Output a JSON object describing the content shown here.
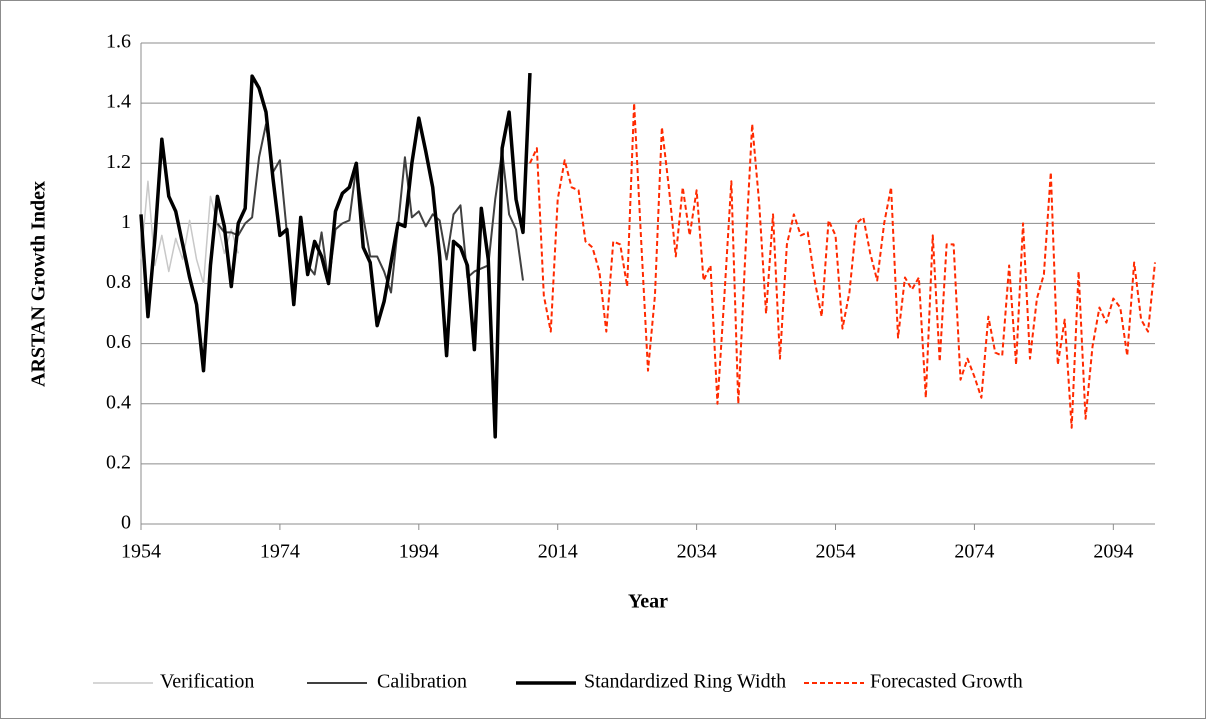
{
  "chart_data": {
    "type": "line",
    "x_label": "Year",
    "y_label": "ARSTAN Growth Index",
    "xlim": [
      1954,
      2100
    ],
    "xticks": [
      1954,
      1974,
      1994,
      2014,
      2034,
      2054,
      2074,
      2094
    ],
    "ylim": [
      0,
      1.6
    ],
    "yticks": [
      0,
      0.2,
      0.4,
      0.6,
      0.8,
      1,
      1.2,
      1.4,
      1.6
    ],
    "grid": true,
    "legend": "bottom",
    "series": [
      {
        "name": "Verification",
        "color": "#c8c8c8",
        "x": [
          1954,
          1955,
          1956,
          1957,
          1958,
          1959,
          1960,
          1961,
          1962,
          1963,
          1964,
          1965,
          1966,
          1967,
          1968
        ],
        "values": [
          0.88,
          1.14,
          0.86,
          0.96,
          0.84,
          0.95,
          0.88,
          1.01,
          0.88,
          0.8,
          1.09,
          1.0,
          0.9,
          0.98,
          0.9
        ]
      },
      {
        "name": "Calibration",
        "color": "#404040",
        "x": [
          1965,
          1966,
          1967,
          1968,
          1969,
          1970,
          1971,
          1972,
          1973,
          1974,
          1975,
          1976,
          1977,
          1978,
          1979,
          1980,
          1981,
          1982,
          1983,
          1984,
          1985,
          1986,
          1987,
          1988,
          1989,
          1990,
          1991,
          1992,
          1993,
          1994,
          1995,
          1996,
          1997,
          1998,
          1999,
          2000,
          2001,
          2002,
          2003,
          2004,
          2005,
          2006,
          2007,
          2008,
          2009
        ],
        "values": [
          1.0,
          0.97,
          0.97,
          0.96,
          1.0,
          1.02,
          1.22,
          1.33,
          1.17,
          1.21,
          0.97,
          0.75,
          0.99,
          0.86,
          0.83,
          0.97,
          0.8,
          0.98,
          1.0,
          1.01,
          1.19,
          1.02,
          0.89,
          0.89,
          0.84,
          0.77,
          0.99,
          1.22,
          1.02,
          1.04,
          0.99,
          1.03,
          1.01,
          0.88,
          1.03,
          1.06,
          0.82,
          0.84,
          0.85,
          0.86,
          1.08,
          1.24,
          1.03,
          0.98,
          0.81
        ]
      },
      {
        "name": "Standardized Ring Width",
        "color": "#000000",
        "x": [
          1954,
          1955,
          1956,
          1957,
          1958,
          1959,
          1960,
          1961,
          1962,
          1963,
          1964,
          1965,
          1966,
          1967,
          1968,
          1969,
          1970,
          1971,
          1972,
          1973,
          1974,
          1975,
          1976,
          1977,
          1978,
          1979,
          1980,
          1981,
          1982,
          1983,
          1984,
          1985,
          1986,
          1987,
          1988,
          1989,
          1990,
          1991,
          1992,
          1993,
          1994,
          1995,
          1996,
          1997,
          1998,
          1999,
          2000,
          2001,
          2002,
          2003,
          2004,
          2005,
          2006,
          2007,
          2008,
          2009,
          2010
        ],
        "values": [
          1.03,
          0.69,
          0.95,
          1.28,
          1.09,
          1.04,
          0.93,
          0.82,
          0.73,
          0.51,
          0.86,
          1.09,
          0.99,
          0.79,
          1.0,
          1.05,
          1.49,
          1.45,
          1.37,
          1.15,
          0.96,
          0.98,
          0.73,
          1.02,
          0.83,
          0.94,
          0.89,
          0.8,
          1.04,
          1.1,
          1.12,
          1.2,
          0.92,
          0.87,
          0.66,
          0.74,
          0.87,
          1.0,
          0.99,
          1.2,
          1.35,
          1.24,
          1.12,
          0.89,
          0.56,
          0.94,
          0.92,
          0.86,
          0.58,
          1.05,
          0.88,
          0.29,
          1.25,
          1.37,
          1.08,
          0.97,
          1.5
        ]
      },
      {
        "name": "Forecasted Growth",
        "color": "#ff2a00",
        "dashed": true,
        "x": [
          2010,
          2011,
          2012,
          2013,
          2014,
          2015,
          2016,
          2017,
          2018,
          2019,
          2020,
          2021,
          2022,
          2023,
          2024,
          2025,
          2026,
          2027,
          2028,
          2029,
          2030,
          2031,
          2032,
          2033,
          2034,
          2035,
          2036,
          2037,
          2038,
          2039,
          2040,
          2041,
          2042,
          2043,
          2044,
          2045,
          2046,
          2047,
          2048,
          2049,
          2050,
          2051,
          2052,
          2053,
          2054,
          2055,
          2056,
          2057,
          2058,
          2059,
          2060,
          2061,
          2062,
          2063,
          2064,
          2065,
          2066,
          2067,
          2068,
          2069,
          2070,
          2071,
          2072,
          2073,
          2074,
          2075,
          2076,
          2077,
          2078,
          2079,
          2080,
          2081,
          2082,
          2083,
          2084,
          2085,
          2086,
          2087,
          2088,
          2089,
          2090,
          2091,
          2092,
          2093,
          2094,
          2095,
          2096,
          2097,
          2098,
          2099,
          2100
        ],
        "values": [
          1.2,
          1.25,
          0.76,
          0.64,
          1.08,
          1.21,
          1.12,
          1.11,
          0.94,
          0.92,
          0.84,
          0.64,
          0.94,
          0.93,
          0.79,
          1.4,
          0.95,
          0.51,
          0.76,
          1.32,
          1.12,
          0.89,
          1.12,
          0.96,
          1.11,
          0.81,
          0.86,
          0.4,
          0.76,
          1.14,
          0.4,
          0.89,
          1.33,
          1.07,
          0.7,
          1.03,
          0.55,
          0.93,
          1.03,
          0.96,
          0.97,
          0.81,
          0.69,
          1.01,
          0.96,
          0.65,
          0.77,
          1.0,
          1.02,
          0.9,
          0.81,
          1.0,
          1.12,
          0.62,
          0.82,
          0.78,
          0.82,
          0.42,
          0.96,
          0.54,
          0.93,
          0.93,
          0.48,
          0.55,
          0.49,
          0.42,
          0.69,
          0.57,
          0.56,
          0.86,
          0.53,
          1.0,
          0.55,
          0.75,
          0.83,
          1.17,
          0.53,
          0.68,
          0.32,
          0.84,
          0.35,
          0.59,
          0.72,
          0.67,
          0.75,
          0.72,
          0.56,
          0.87,
          0.68,
          0.64,
          0.87
        ]
      }
    ]
  }
}
